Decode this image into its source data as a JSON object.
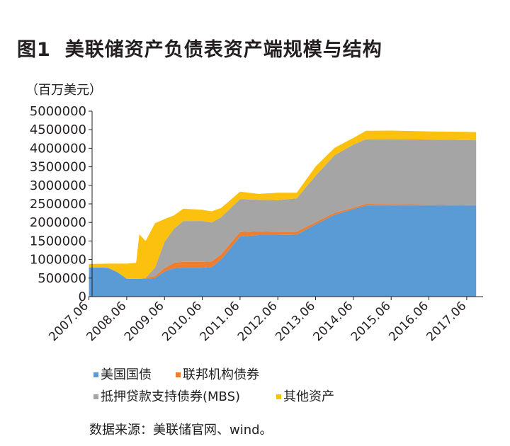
{
  "header": {
    "figure_no": "图1",
    "title": "美联储资产负债表资产端规模与结构"
  },
  "unit_label": "（百万美元）",
  "source": "数据来源：美联储官网、wind。",
  "colors": {
    "treasury": "#5b9bd5",
    "agency": "#ed7d31",
    "mbs": "#a5a5a5",
    "other": "#fcc10e"
  },
  "chart_data": {
    "type": "area",
    "stacked": true,
    "ylim": [
      0,
      5000000
    ],
    "y_ticks": [
      "5000000",
      "4500000",
      "4000000",
      "3500000",
      "3000000",
      "2500000",
      "2000000",
      "1500000",
      "1000000",
      "500000",
      "0"
    ],
    "x_ticks": [
      "2007.06",
      "2008.06",
      "2009.06",
      "2010.06",
      "2011.06",
      "2012.06",
      "2013.06",
      "2014.06",
      "2015.06",
      "2016.06",
      "2017.06"
    ],
    "x": [
      "2007.06",
      "2007.12",
      "2008.03",
      "2008.06",
      "2008.09",
      "2008.10",
      "2008.12",
      "2009.03",
      "2009.06",
      "2009.09",
      "2009.12",
      "2010.06",
      "2010.09",
      "2010.12",
      "2011.06",
      "2011.12",
      "2012.06",
      "2012.12",
      "2013.06",
      "2013.12",
      "2014.06",
      "2014.10",
      "2015.06",
      "2016.06",
      "2017.06",
      "2017.09"
    ],
    "series": [
      {
        "name": "美国国债",
        "values": [
          790000,
          780000,
          660000,
          480000,
          480000,
          480000,
          480000,
          500000,
          680000,
          770000,
          780000,
          780000,
          800000,
          1000000,
          1620000,
          1660000,
          1660000,
          1670000,
          1950000,
          2210000,
          2360000,
          2460000,
          2460000,
          2460000,
          2460000,
          2460000
        ]
      },
      {
        "name": "联邦机构债券",
        "values": [
          0,
          0,
          0,
          0,
          0,
          0,
          20000,
          50000,
          90000,
          140000,
          160000,
          160000,
          150000,
          140000,
          120000,
          100000,
          90000,
          80000,
          60000,
          50000,
          40000,
          40000,
          35000,
          25000,
          10000,
          5000
        ]
      },
      {
        "name": "抵押贷款支持债券(MBS)",
        "values": [
          0,
          0,
          0,
          0,
          0,
          0,
          0,
          230000,
          700000,
          920000,
          1100000,
          1100000,
          1050000,
          1000000,
          890000,
          850000,
          850000,
          900000,
          1250000,
          1550000,
          1700000,
          1740000,
          1750000,
          1750000,
          1750000,
          1750000
        ]
      },
      {
        "name": "其他资产",
        "values": [
          90000,
          110000,
          230000,
          410000,
          430000,
          1200000,
          1000000,
          1200000,
          620000,
          360000,
          330000,
          300000,
          300000,
          250000,
          200000,
          160000,
          200000,
          150000,
          250000,
          200000,
          180000,
          230000,
          230000,
          220000,
          220000,
          220000
        ]
      }
    ]
  }
}
